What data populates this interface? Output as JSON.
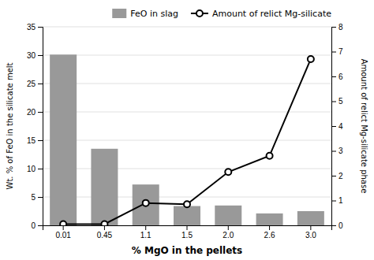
{
  "chart_data": {
    "type": "bar",
    "xlabel": "% MgO in the pellets",
    "ylabel": "Wt. % of FeO in the silicate melt",
    "y2label": "Amount of relict Mg-silicate phase",
    "categories": [
      "0.01",
      "0.45",
      "1.1",
      "1.5",
      "2.0",
      "2.6",
      "3.0"
    ],
    "series": [
      {
        "name": "FeO in slag",
        "type": "bar",
        "color": "#999999",
        "values": [
          30.1,
          13.5,
          7.2,
          3.4,
          3.5,
          2.1,
          2.5
        ]
      },
      {
        "name": "Amount of relict Mg-silicate",
        "type": "line",
        "color": "#000000",
        "marker": "circle",
        "axis": "y2",
        "values": [
          0.05,
          0.05,
          0.9,
          0.85,
          2.15,
          2.8,
          6.7
        ]
      }
    ],
    "ylim": [
      0,
      35
    ],
    "yticks": [
      0,
      5,
      10,
      15,
      20,
      25,
      30,
      35
    ],
    "y2lim": [
      0,
      8
    ],
    "y2ticks": [
      0,
      1,
      2,
      3,
      4,
      5,
      6,
      7,
      8
    ],
    "grid": true,
    "legend": "upper right"
  }
}
